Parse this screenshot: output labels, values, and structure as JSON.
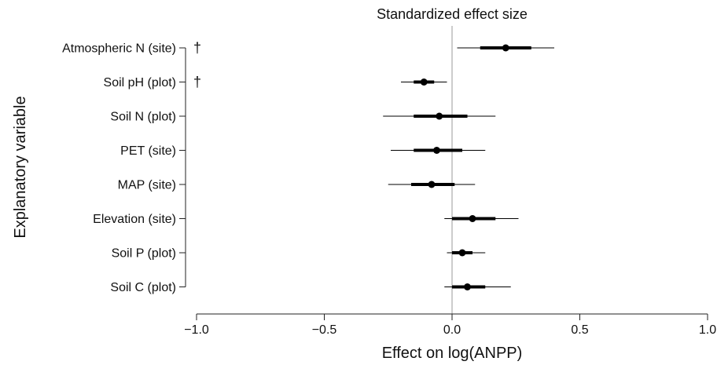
{
  "chart_data": {
    "type": "forest",
    "title": "Standardized effect size",
    "xlabel": "Effect on log(ANPP)",
    "ylabel": "Explanatory variable",
    "xlim": [
      -1.0,
      1.0
    ],
    "xticks": [
      -1.0,
      -0.5,
      0.0,
      0.5,
      1.0
    ],
    "xtick_labels": [
      "−1.0",
      "−0.5",
      "0.0",
      "0.5",
      "1.0"
    ],
    "reference_line": 0,
    "grid": false,
    "rows": [
      {
        "label": "Atmospheric N (site)",
        "estimate": 0.21,
        "inner": [
          0.11,
          0.31
        ],
        "outer": [
          0.02,
          0.4
        ],
        "marker": "†"
      },
      {
        "label": "Soil pH (plot)",
        "estimate": -0.11,
        "inner": [
          -0.15,
          -0.07
        ],
        "outer": [
          -0.2,
          -0.02
        ],
        "marker": "†"
      },
      {
        "label": "Soil N (plot)",
        "estimate": -0.05,
        "inner": [
          -0.15,
          0.06
        ],
        "outer": [
          -0.27,
          0.17
        ],
        "marker": ""
      },
      {
        "label": "PET (site)",
        "estimate": -0.06,
        "inner": [
          -0.15,
          0.04
        ],
        "outer": [
          -0.24,
          0.13
        ],
        "marker": ""
      },
      {
        "label": "MAP (site)",
        "estimate": -0.08,
        "inner": [
          -0.16,
          0.01
        ],
        "outer": [
          -0.25,
          0.09
        ],
        "marker": ""
      },
      {
        "label": "Elevation (site)",
        "estimate": 0.08,
        "inner": [
          0.0,
          0.17
        ],
        "outer": [
          -0.03,
          0.26
        ],
        "marker": ""
      },
      {
        "label": "Soil P (plot)",
        "estimate": 0.04,
        "inner": [
          0.0,
          0.08
        ],
        "outer": [
          -0.02,
          0.13
        ],
        "marker": ""
      },
      {
        "label": "Soil C (plot)",
        "estimate": 0.06,
        "inner": [
          0.0,
          0.13
        ],
        "outer": [
          -0.03,
          0.23
        ],
        "marker": ""
      }
    ]
  }
}
